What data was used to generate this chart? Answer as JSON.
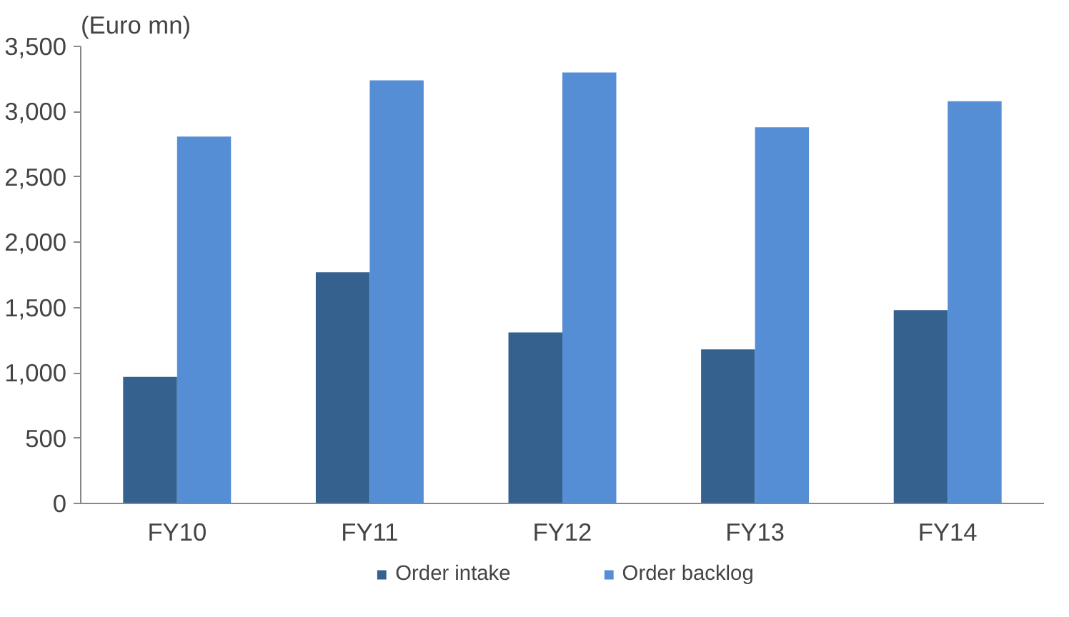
{
  "chart_data": {
    "type": "bar",
    "ylabel": "(Euro mn)",
    "categories": [
      "FY10",
      "FY11",
      "FY12",
      "FY13",
      "FY14"
    ],
    "series": [
      {
        "name": "Order intake",
        "color": "#35618f",
        "values": [
          970,
          1770,
          1310,
          1180,
          1480
        ]
      },
      {
        "name": "Order backlog",
        "color": "#558ed5",
        "values": [
          2810,
          3240,
          3300,
          2880,
          3080
        ]
      }
    ],
    "ylim": [
      0,
      3500
    ],
    "yticks": [
      0,
      {
        "value": 500,
        "label": "500"
      },
      {
        "value": 1000,
        "label": "1,000"
      },
      {
        "value": 1500,
        "label": "1,500"
      },
      {
        "value": 2000,
        "label": "2,000"
      },
      {
        "value": 2500,
        "label": "2,500"
      },
      {
        "value": 3000,
        "label": "3,000"
      },
      {
        "value": 3500,
        "label": "3,500"
      }
    ],
    "grid": false,
    "legend": "bottom"
  }
}
